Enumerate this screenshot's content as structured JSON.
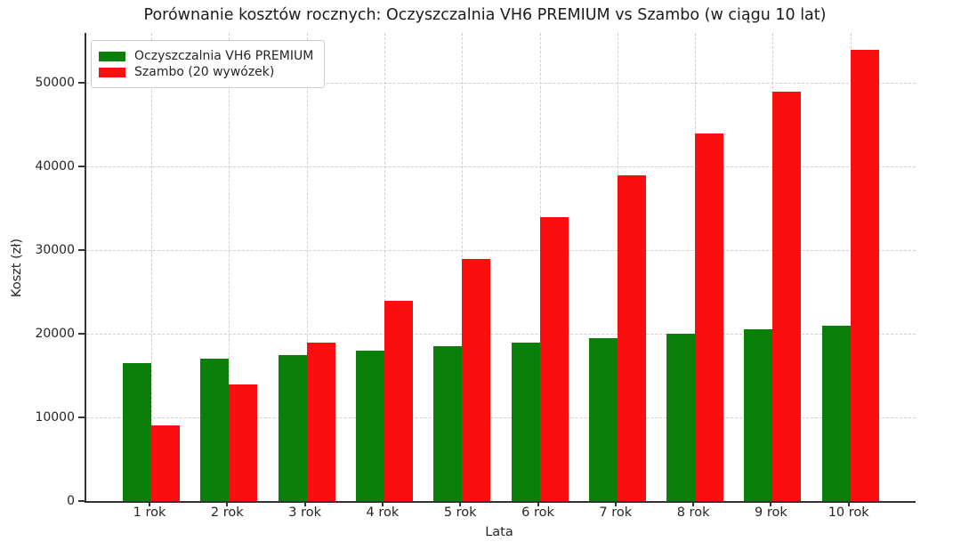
{
  "chart_data": {
    "type": "bar",
    "title": "Porównanie kosztów rocznych: Oczyszczalnia VH6 PREMIUM vs Szambo (w ciągu 10 lat)",
    "xlabel": "Lata",
    "ylabel": "Koszt (zł)",
    "categories": [
      "1 rok",
      "2 rok",
      "3 rok",
      "4 rok",
      "5 rok",
      "6 rok",
      "7 rok",
      "8 rok",
      "9 rok",
      "10 rok"
    ],
    "series": [
      {
        "name": "Oczyszczalnia VH6 PREMIUM",
        "color": "#0a800a",
        "values": [
          16500,
          17000,
          17500,
          18000,
          18500,
          19000,
          19500,
          20000,
          20500,
          21000
        ]
      },
      {
        "name": "Szambo (20 wywózek)",
        "color": "#fb0e0e",
        "values": [
          9000,
          14000,
          19000,
          24000,
          29000,
          34000,
          39000,
          44000,
          49000,
          54000
        ]
      }
    ],
    "yticks": [
      0,
      10000,
      20000,
      30000,
      40000,
      50000
    ],
    "ylim": [
      0,
      56000
    ],
    "grid": "dashed-light-both-axes",
    "grid_below_bars": true,
    "legend_position": "upper-left",
    "spines": [
      "left",
      "bottom"
    ],
    "background_color": "#ffffff",
    "text_color": "#262626"
  }
}
